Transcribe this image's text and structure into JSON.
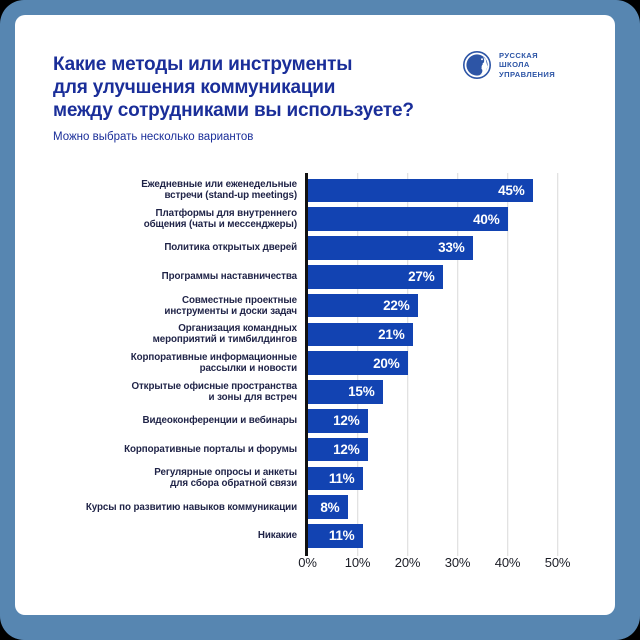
{
  "colors": {
    "frame": "#5786b1",
    "brand_title": "#1a2e99",
    "brand_logo": "#2d55a6",
    "bar": "#1243b2",
    "gridline": "#d9d9d9",
    "axis": "#111111",
    "category_label": "#1f2347",
    "value_label": "#ffffff"
  },
  "header": {
    "title": "Какие методы или инструменты\nдля улучшения коммуникации\nмежду сотрудниками вы используете?",
    "subtitle": "Можно выбрать несколько вариантов"
  },
  "logo": {
    "name": "Русская школа управления",
    "lines": "РУССКАЯ\nШКОЛА\nУПРАВЛЕНИЯ",
    "icon": "globe-profile-icon"
  },
  "chart_data": {
    "type": "bar",
    "orientation": "horizontal",
    "title": "Какие методы или инструменты для улучшения коммуникации между сотрудниками вы используете?",
    "subtitle": "Можно выбрать несколько вариантов",
    "categories": [
      "Ежедневные или еженедельные\nвстречи (stand-up meetings)",
      "Платформы для внутреннего\nобщения (чаты и мессенджеры)",
      "Политика открытых дверей",
      "Программы наставничества",
      "Совместные проектные\nинструменты и доски задач",
      "Организация командных\nмероприятий и тимбилдингов",
      "Корпоративные информационные\nрассылки и новости",
      "Открытые офисные пространства\nи зоны для встреч",
      "Видеоконференции и вебинары",
      "Корпоративные порталы и форумы",
      "Регулярные опросы и анкеты\nдля сбора обратной связи",
      "Курсы по развитию навыков коммуникации",
      "Никакие"
    ],
    "values": [
      45,
      40,
      33,
      27,
      22,
      21,
      20,
      15,
      12,
      12,
      11,
      8,
      11
    ],
    "value_labels": [
      "45%",
      "40%",
      "33%",
      "27%",
      "22%",
      "21%",
      "20%",
      "15%",
      "12%",
      "12%",
      "11%",
      "8%",
      "11%"
    ],
    "x_tick_values": [
      0,
      10,
      20,
      30,
      40,
      50
    ],
    "x_tick_labels": [
      "0%",
      "10%",
      "20%",
      "30%",
      "40%",
      "50%"
    ],
    "xlim": [
      0,
      55
    ],
    "grid": true,
    "legend": false,
    "xlabel": "",
    "ylabel": ""
  }
}
